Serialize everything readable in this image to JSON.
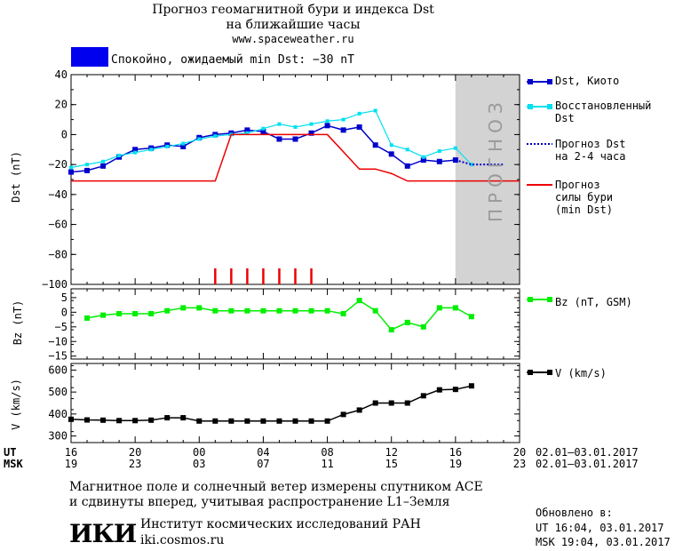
{
  "header": {
    "title_line1": "Прогноз геомагнитной бури и индекса Dst",
    "title_line2": "на ближайшие часы",
    "url": "www.spaceweather.ru"
  },
  "status": {
    "text": "Спокойно, ожидаемый min Dst: −30 nT",
    "color": "#0000ee"
  },
  "forecast_zone_label": "ПРОГНОЗ",
  "legend": {
    "dst_kyoto": "Dst, Киото",
    "dst_restored": "Восстановленный\nDst",
    "dst_forecast": "Прогноз Dst\nна 2-4 часа",
    "storm_forecast": "Прогноз\nсилы бури\n(min Dst)",
    "bz": "Bz (nT, GSM)",
    "v": "V (km/s)"
  },
  "time_axis": {
    "ut_label": "UT",
    "msk_label": "MSK",
    "ut_ticks": [
      "16",
      "20",
      "00",
      "04",
      "08",
      "12",
      "16",
      "20"
    ],
    "msk_ticks": [
      "19",
      "23",
      "03",
      "07",
      "11",
      "15",
      "19",
      "23"
    ],
    "ut_range": "02.01–03.01.2017",
    "msk_range": "02.01–03.01.2017"
  },
  "footer": {
    "note_line1": "Магнитное поле и солнечный ветер измерены спутником ACE",
    "note_line2": "и сдвинуты вперед, учитывая распространение L1–Земля",
    "institute": "Институт космических исследований РАН",
    "site": "iki.cosmos.ru",
    "logo_text": "ИКИ",
    "updated_label": "Обновлено в:",
    "updated_ut": "UT  16:04, 03.01.2017",
    "updated_msk": "MSK 19:04, 03.01.2017"
  },
  "chart_data": [
    {
      "type": "line",
      "ylabel": "Dst (nT)",
      "ylim": [
        -100,
        40
      ],
      "yticks": [
        40,
        20,
        0,
        -20,
        -40,
        -60,
        -80,
        -100
      ],
      "x_unit": "hours since 16 UT 02.01.2017",
      "xlim": [
        0,
        28
      ],
      "forecast_region": [
        24,
        28
      ],
      "colors": {
        "kyoto": "#0000cc",
        "restored": "#00e0f0",
        "forecast": "#0000cc",
        "storm": "#ee0000",
        "shade": "#d3d3d3"
      },
      "series": [
        {
          "name": "Dst, Киото",
          "x": [
            0,
            1,
            2,
            3,
            4,
            5,
            6,
            7,
            8,
            9,
            10,
            11,
            12,
            13,
            14,
            15,
            16,
            17,
            18,
            19,
            20,
            21,
            22,
            23,
            24
          ],
          "values": [
            -25,
            -24,
            -21,
            -15,
            -10,
            -9,
            -7,
            -8,
            -2,
            0,
            1,
            3,
            2,
            -3,
            -3,
            1,
            6,
            3,
            5,
            -7,
            -13,
            -21,
            -17,
            -18,
            -17
          ]
        },
        {
          "name": "Восстановленный Dst",
          "x": [
            0,
            1,
            2,
            3,
            4,
            5,
            6,
            7,
            8,
            9,
            10,
            11,
            12,
            13,
            14,
            15,
            16,
            17,
            18,
            19,
            20,
            21,
            22,
            23,
            24,
            25
          ],
          "values": [
            -22,
            -20,
            -18,
            -14,
            -12,
            -10,
            -8,
            -6,
            -3,
            -1,
            0,
            1,
            4,
            7,
            5,
            7,
            9,
            10,
            14,
            16,
            -7,
            -10,
            -15,
            -11,
            -9,
            -20
          ]
        },
        {
          "name": "Прогноз Dst на 2-4 часа",
          "x": [
            24,
            25,
            26,
            27
          ],
          "values": [
            -17,
            -20,
            -20,
            -20
          ]
        },
        {
          "name": "Прогноз силы бури (min Dst)",
          "x": [
            0,
            9,
            10,
            16,
            18,
            19,
            20,
            21,
            28
          ],
          "values": [
            -31,
            -31,
            0,
            0,
            -23,
            -23,
            -26,
            -31,
            -31
          ]
        }
      ],
      "storm_marks_x": [
        9,
        10,
        11,
        12,
        13,
        14,
        15
      ]
    },
    {
      "type": "line",
      "ylabel": "Bz (nT)",
      "ylim": [
        -16,
        8
      ],
      "yticks": [
        5,
        0,
        -5,
        -10,
        -15
      ],
      "xlim": [
        0,
        28
      ],
      "color": "#00ee00",
      "series": [
        {
          "name": "Bz (nT, GSM)",
          "x": [
            1,
            2,
            3,
            4,
            5,
            6,
            7,
            8,
            9,
            10,
            11,
            12,
            13,
            14,
            15,
            16,
            17,
            18,
            19,
            20,
            21,
            22,
            23,
            24,
            25
          ],
          "values": [
            -2,
            -1,
            -0.5,
            -0.5,
            -0.5,
            0.5,
            1.5,
            1.5,
            0.5,
            0.5,
            0.5,
            0.5,
            0.5,
            0.5,
            0.5,
            0.5,
            -0.5,
            4,
            0.5,
            -6,
            -3.5,
            -5,
            1.5,
            1.5,
            -1.5
          ]
        }
      ]
    },
    {
      "type": "line",
      "ylabel": "V (km/s)",
      "ylim": [
        270,
        630
      ],
      "yticks": [
        600,
        500,
        400,
        300
      ],
      "xlim": [
        0,
        28
      ],
      "color": "#000000",
      "series": [
        {
          "name": "V (km/s)",
          "x": [
            0,
            1,
            2,
            3,
            4,
            5,
            6,
            7,
            8,
            9,
            10,
            11,
            12,
            13,
            14,
            15,
            16,
            17,
            18,
            19,
            20,
            21,
            22,
            23,
            24,
            25
          ],
          "values": [
            376,
            373,
            372,
            370,
            370,
            372,
            383,
            383,
            368,
            368,
            368,
            368,
            368,
            368,
            368,
            368,
            368,
            398,
            418,
            450,
            450,
            450,
            483,
            510,
            512,
            528
          ]
        }
      ]
    }
  ]
}
